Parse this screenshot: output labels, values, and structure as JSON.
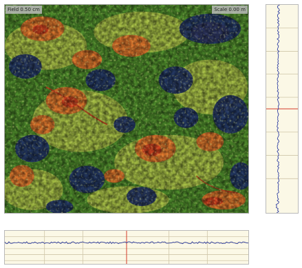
{
  "map": {
    "left_label": "Field 0.50 cm",
    "right_label": "Scale 0.00 m",
    "colors": {
      "background": "#4d7a2a",
      "dark_blue": "#22346a",
      "green": "#4f8d2c",
      "yellow_green": "#b6c84a",
      "orange": "#e9722c",
      "red": "#cf3a1f"
    }
  },
  "profiles": {
    "trace_color": "#2a3aa0",
    "cursor_color": "#d43a2a",
    "grid_color": "#cfc6a8",
    "panel_background": "#fbf8e6"
  }
}
